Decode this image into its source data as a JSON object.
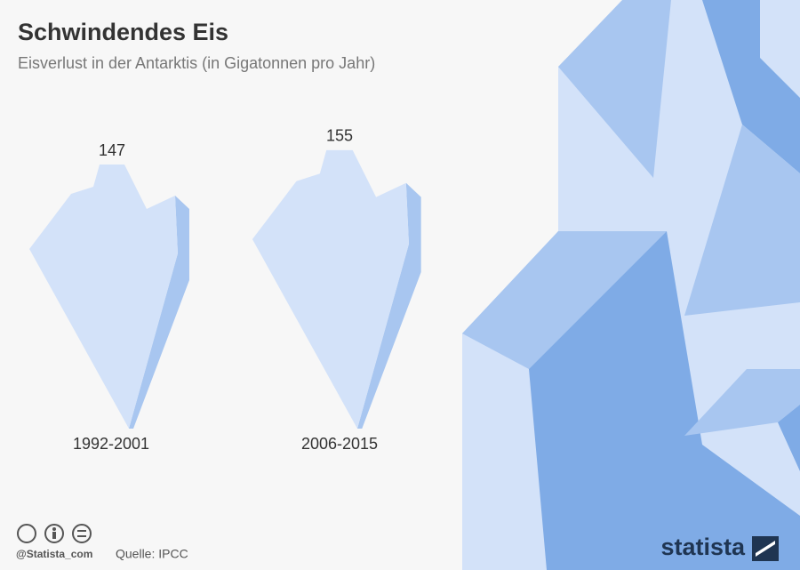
{
  "chart_data": {
    "type": "pictograph",
    "title": "Schwindendes Eis",
    "subtitle": "Eisverlust in der Antarktis (in Gigatonnen pro Jahr)",
    "categories": [
      "1992-2001",
      "2006-2015"
    ],
    "values": [
      147,
      155
    ],
    "color": "#d3e2f9",
    "side_color": "#a8c6f0"
  },
  "footer": {
    "credit": "@Statista_com",
    "source": "Quelle: IPCC",
    "brand": "statista"
  }
}
